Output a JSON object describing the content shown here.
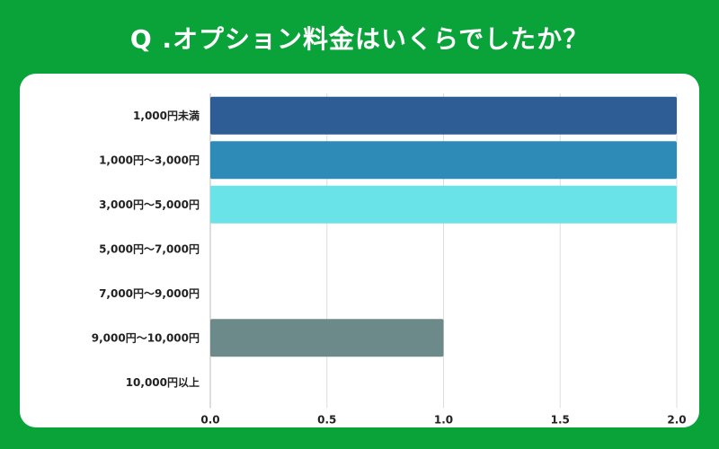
{
  "title": "Q .オプション料金はいくらでしたか？",
  "chart_data": {
    "type": "bar",
    "orientation": "horizontal",
    "title": "Q .オプション料金はいくらでしたか？",
    "categories": [
      "1,000円未満",
      "1,000円〜3,000円",
      "3,000円〜5,000円",
      "5,000円〜7,000円",
      "7,000円〜9,000円",
      "9,000円〜10,000円",
      "10,000円以上"
    ],
    "values": [
      2,
      2,
      2,
      0,
      0,
      1,
      0
    ],
    "colors": [
      "#2e5d96",
      "#2e8bb8",
      "#6ae3e8",
      "#2e5d96",
      "#2e5d96",
      "#6d8a8a",
      "#2e5d96"
    ],
    "xlim": [
      0,
      2.0
    ],
    "xticks": [
      "0.0",
      "0.5",
      "1.0",
      "1.5",
      "2.0"
    ],
    "xtick_values": [
      0,
      0.5,
      1.0,
      1.5,
      2.0
    ],
    "grid": true
  }
}
